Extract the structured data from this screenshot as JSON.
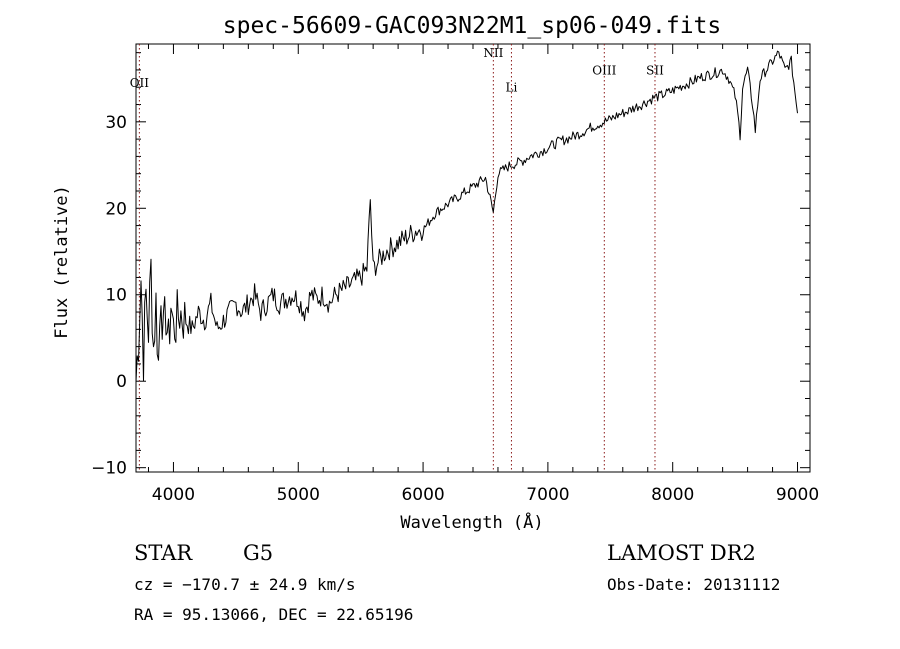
{
  "chart_data": {
    "type": "line",
    "title": "spec-56609-GAC093N22M1_sp06-049.fits",
    "xlabel": "Wavelength (Å)",
    "ylabel": "Flux (relative)",
    "xlim": [
      3700,
      9100
    ],
    "ylim": [
      -10.5,
      39
    ],
    "x_ticks": [
      4000,
      5000,
      6000,
      7000,
      8000,
      9000
    ],
    "x_tick_labels": [
      "4000",
      "5000",
      "6000",
      "7000",
      "8000",
      "9000"
    ],
    "y_ticks": [
      -10,
      0,
      10,
      20,
      30
    ],
    "y_tick_labels": [
      "−10",
      "0",
      "10",
      "20",
      "30"
    ],
    "grid": false,
    "series": [
      {
        "color": "#000000",
        "x": [
          3700,
          3720,
          3740,
          3760,
          3780,
          3800,
          3820,
          3840,
          3860,
          3880,
          3900,
          3920,
          3940,
          3960,
          3980,
          4000,
          4050,
          4100,
          4150,
          4200,
          4250,
          4300,
          4350,
          4400,
          4450,
          4500,
          4550,
          4600,
          4650,
          4700,
          4750,
          4800,
          4850,
          4900,
          4950,
          5000,
          5050,
          5100,
          5150,
          5200,
          5250,
          5300,
          5350,
          5400,
          5450,
          5500,
          5550,
          5577,
          5600,
          5650,
          5700,
          5750,
          5800,
          5850,
          5900,
          5950,
          6000,
          6050,
          6100,
          6150,
          6200,
          6250,
          6300,
          6350,
          6400,
          6450,
          6500,
          6563,
          6600,
          6650,
          6700,
          6750,
          6800,
          6850,
          6900,
          6950,
          7000,
          7050,
          7100,
          7150,
          7200,
          7250,
          7300,
          7350,
          7400,
          7450,
          7500,
          7550,
          7600,
          7650,
          7700,
          7750,
          7800,
          7850,
          7900,
          7950,
          8000,
          8050,
          8100,
          8150,
          8200,
          8250,
          8300,
          8350,
          8400,
          8450,
          8500,
          8520,
          8540,
          8560,
          8600,
          8640,
          8662,
          8700,
          8750,
          8800,
          8850,
          8900,
          8950,
          9000
        ],
        "y": [
          0,
          5,
          12,
          3,
          10,
          6,
          13,
          4,
          9,
          2,
          11,
          5,
          8,
          4,
          9,
          6,
          8,
          7,
          6,
          8,
          7,
          9,
          6,
          7,
          8,
          9,
          8,
          9,
          10,
          8,
          9,
          10,
          9,
          9.5,
          10,
          9.5,
          8,
          10,
          9.5,
          10,
          9,
          10,
          10.5,
          11,
          11.5,
          12,
          13,
          21,
          13,
          14,
          15,
          15.5,
          16,
          16.5,
          17,
          17.5,
          17.5,
          18.5,
          19.5,
          20,
          20.5,
          21,
          21.5,
          22,
          22.5,
          23,
          23.5,
          19.5,
          24,
          24.5,
          25,
          25.2,
          25.5,
          26,
          26.3,
          26.6,
          27,
          27.4,
          27.8,
          28,
          28.3,
          28.6,
          29,
          29.4,
          29.7,
          30,
          30.3,
          30.7,
          31,
          31.3,
          31.7,
          32,
          32.4,
          32.8,
          33,
          33.3,
          33.6,
          34,
          34.3,
          34.6,
          35,
          35.3,
          35.5,
          35.7,
          36,
          35,
          33,
          31,
          28.5,
          34,
          36,
          32,
          29,
          35,
          36,
          37,
          38,
          36,
          37,
          31
        ]
      }
    ],
    "line_markers": [
      {
        "label": "OII",
        "x": 3727,
        "y": 34
      },
      {
        "label": "NII",
        "x": 6563,
        "y": 37.5
      },
      {
        "label": "Li",
        "x": 6708,
        "y": 33.5
      },
      {
        "label": "OIII",
        "x": 7452,
        "y": 35.5
      },
      {
        "label": "SII",
        "x": 7858,
        "y": 35.5
      }
    ]
  },
  "info": {
    "object_class": "STAR",
    "subclass": "G5",
    "survey": "LAMOST DR2",
    "redshift": "cz = −170.7 ± 24.9 km/s",
    "obs_date": "Obs-Date: 20131112",
    "coords": "RA =  95.13066, DEC =  22.65196"
  }
}
